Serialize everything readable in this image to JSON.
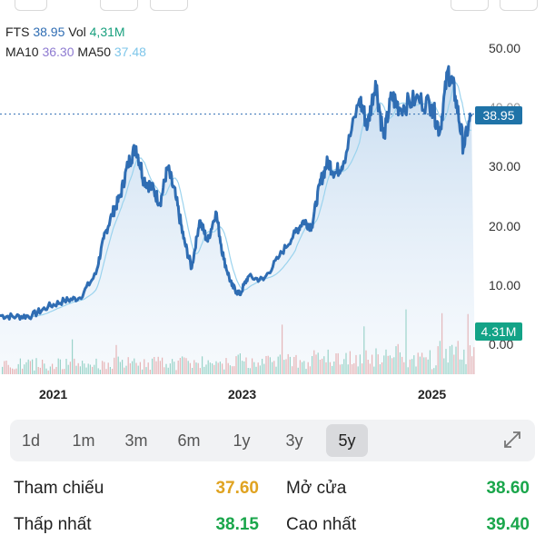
{
  "legend": {
    "symbol": "FTS",
    "price": "38.95",
    "vol_label": "Vol",
    "vol_value": "4,31M",
    "ma10_label": "MA10",
    "ma10_value": "36.30",
    "ma50_label": "MA50",
    "ma50_value": "37.48"
  },
  "tags": {
    "price": "38.95",
    "volume": "4.31M"
  },
  "colors": {
    "price_line": "#2f6db3",
    "ma10": "#8e7bd1",
    "ma50": "#9bd3ee",
    "up": "#19a07e",
    "down": "#d9534f",
    "ref": "#e0a321",
    "green": "#1aa64b"
  },
  "chart_data": {
    "type": "line",
    "y_ticks": [
      "50.00",
      "40.00",
      "30.00",
      "20.00",
      "10.00",
      "0.00"
    ],
    "x_ticks": [
      "2021",
      "2023",
      "2025"
    ],
    "ylim": [
      0,
      52
    ],
    "current_price": 38.95,
    "series": [
      {
        "name": "FTS",
        "x": [
          "2020-06",
          "2020-08",
          "2020-10",
          "2020-12",
          "2021-02",
          "2021-04",
          "2021-06",
          "2021-07",
          "2021-08",
          "2021-09",
          "2021-10",
          "2021-11",
          "2021-12",
          "2022-01",
          "2022-02",
          "2022-03",
          "2022-04",
          "2022-05",
          "2022-06",
          "2022-07",
          "2022-08",
          "2022-09",
          "2022-10",
          "2022-11",
          "2022-12",
          "2023-01",
          "2023-03",
          "2023-05",
          "2023-07",
          "2023-08",
          "2023-09",
          "2023-10",
          "2023-11",
          "2023-12",
          "2024-01",
          "2024-03",
          "2024-04",
          "2024-05",
          "2024-06",
          "2024-07",
          "2024-08",
          "2024-10",
          "2024-12",
          "2025-01",
          "2025-02",
          "2025-03",
          "2025-04",
          "2025-05"
        ],
        "values": [
          5.0,
          4.8,
          5.0,
          6.5,
          7.5,
          8.0,
          12.0,
          18.0,
          22.0,
          25.0,
          30.5,
          33.5,
          28.0,
          26.5,
          24.0,
          30.0,
          25.0,
          18.0,
          13.0,
          21.0,
          17.5,
          22.5,
          14.5,
          10.0,
          8.5,
          11.5,
          11.0,
          15.0,
          19.0,
          21.0,
          20.0,
          27.0,
          31.0,
          29.0,
          31.0,
          41.5,
          37.0,
          44.5,
          35.0,
          42.0,
          40.0,
          41.5,
          40.5,
          36.0,
          46.5,
          42.0,
          33.5,
          38.95
        ]
      }
    ]
  },
  "ranges": {
    "items": [
      "1d",
      "1m",
      "3m",
      "6m",
      "1y",
      "3y",
      "5y"
    ],
    "active": "5y"
  },
  "stats": {
    "ref_label": "Tham chiếu",
    "ref_value": "37.60",
    "open_label": "Mở cửa",
    "open_value": "38.60",
    "low_label": "Thấp nhất",
    "low_value": "38.15",
    "high_label": "Cao nhất",
    "high_value": "39.40"
  }
}
